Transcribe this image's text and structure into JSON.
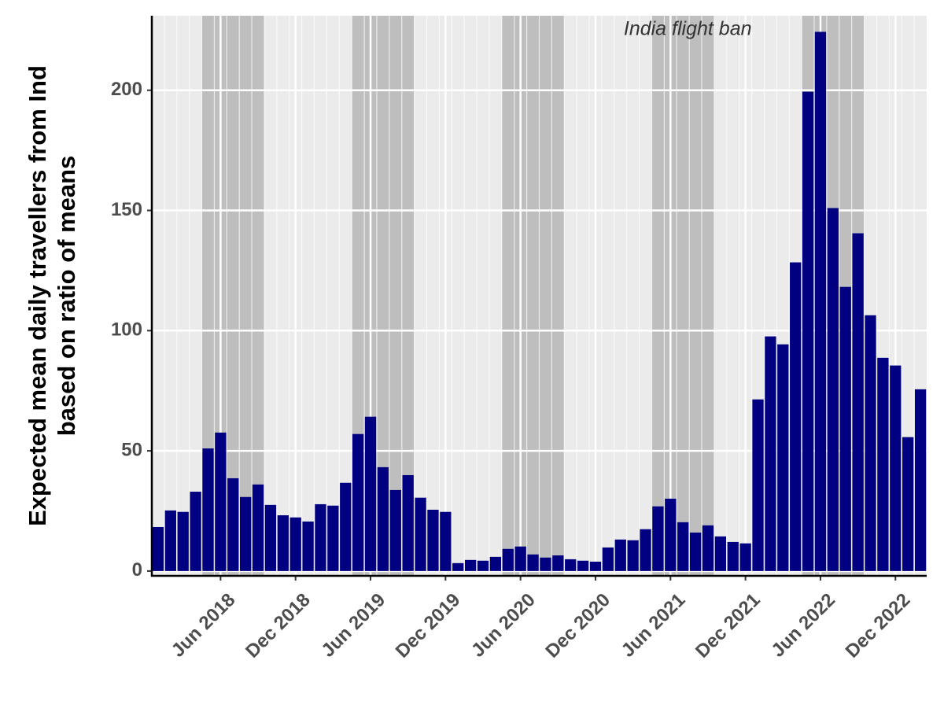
{
  "chart_data": {
    "type": "bar",
    "y_label": [
      "Expected mean daily travellers from Ind",
      "based on ratio of means"
    ],
    "annotation": "India flight ban",
    "shaded_periods": [
      [
        "2018-05",
        "2018-09"
      ],
      [
        "2019-05",
        "2019-09"
      ],
      [
        "2020-05",
        "2020-09"
      ],
      [
        "2021-05",
        "2021-09"
      ],
      [
        "2022-05",
        "2022-09"
      ]
    ],
    "shade_color": "#bebebe",
    "x": [
      "2018-01",
      "2018-02",
      "2018-03",
      "2018-04",
      "2018-05",
      "2018-06",
      "2018-07",
      "2018-08",
      "2018-09",
      "2018-10",
      "2018-11",
      "2018-12",
      "2019-01",
      "2019-02",
      "2019-03",
      "2019-04",
      "2019-05",
      "2019-06",
      "2019-07",
      "2019-08",
      "2019-09",
      "2019-10",
      "2019-11",
      "2019-12",
      "2020-01",
      "2020-02",
      "2020-03",
      "2020-04",
      "2020-05",
      "2020-06",
      "2020-07",
      "2020-08",
      "2020-09",
      "2020-10",
      "2020-11",
      "2020-12",
      "2021-01",
      "2021-02",
      "2021-03",
      "2021-04",
      "2021-05",
      "2021-06",
      "2021-07",
      "2021-08",
      "2021-09",
      "2021-10",
      "2021-11",
      "2021-12",
      "2022-01",
      "2022-02",
      "2022-03",
      "2022-04",
      "2022-05",
      "2022-06",
      "2022-07",
      "2022-08",
      "2022-09",
      "2022-10",
      "2022-11",
      "2022-12",
      "2023-01",
      "2023-02"
    ],
    "values": [
      18.3,
      25.2,
      24.6,
      33,
      51,
      57.6,
      38.6,
      30.8,
      36,
      27.5,
      23.2,
      22.3,
      20.6,
      27.8,
      27.2,
      36.7,
      57,
      64.2,
      43.2,
      33.7,
      39.9,
      30.5,
      25.5,
      24.6,
      3.3,
      4.6,
      4.3,
      5.9,
      9.2,
      10.2,
      6.9,
      5.6,
      6.5,
      4.9,
      4.3,
      3.9,
      9.8,
      13.1,
      12.8,
      17.4,
      26.9,
      30.1,
      20.3,
      16,
      19,
      14.4,
      12.1,
      11.5,
      71.4,
      97.6,
      94.3,
      128.4,
      199.4,
      224.3,
      151,
      118.2,
      140.5,
      106.4,
      88.7,
      85.5,
      55.7,
      75.6
    ],
    "color": "#000080",
    "xlim": [
      "2018-01",
      "2023-02"
    ],
    "xticks": [
      {
        "value": "2018-06",
        "label": "Jun 2018"
      },
      {
        "value": "2018-12",
        "label": "Dec 2018"
      },
      {
        "value": "2019-06",
        "label": "Jun 2019"
      },
      {
        "value": "2019-12",
        "label": "Dec 2019"
      },
      {
        "value": "2020-06",
        "label": "Jun 2020"
      },
      {
        "value": "2020-12",
        "label": "Dec 2020"
      },
      {
        "value": "2021-06",
        "label": "Jun 2021"
      },
      {
        "value": "2021-12",
        "label": "Dec 2021"
      },
      {
        "value": "2022-06",
        "label": "Jun 2022"
      },
      {
        "value": "2022-12",
        "label": "Dec 2022"
      }
    ],
    "ylim": [
      -2,
      231
    ],
    "yticks": [
      0,
      50,
      100,
      150,
      200
    ],
    "grid": true
  }
}
